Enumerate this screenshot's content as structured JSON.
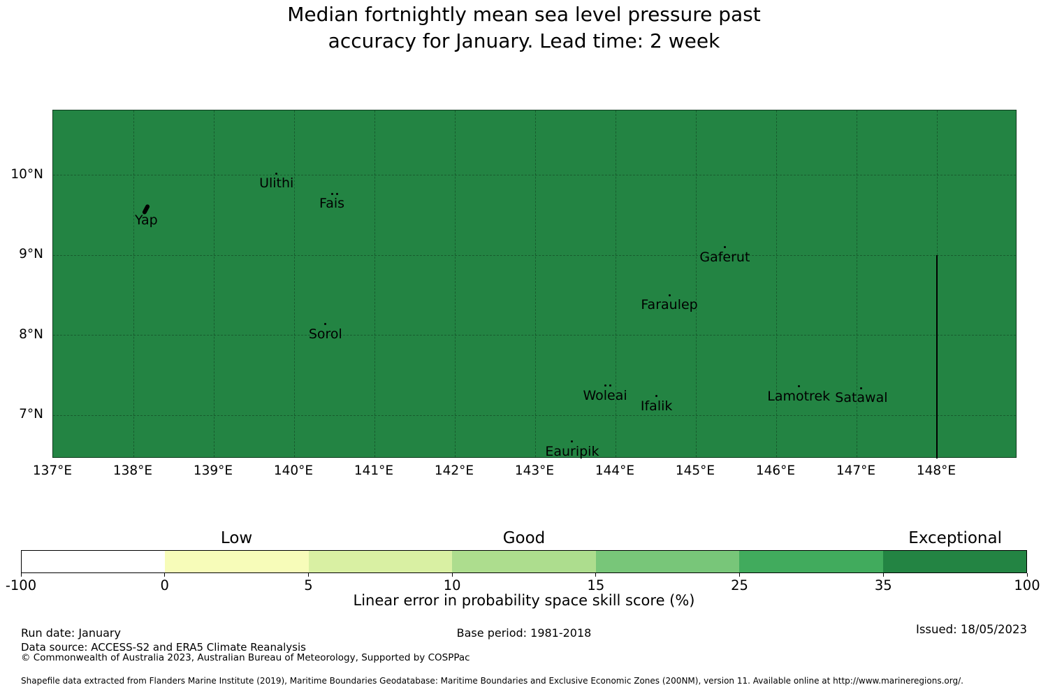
{
  "title": {
    "line1": "Median fortnightly mean sea level pressure past",
    "line2": "accuracy for January. Lead time: 2 week"
  },
  "map": {
    "fill_color": "#238443",
    "xlim": [
      137,
      149
    ],
    "ylim": [
      6.46,
      10.81
    ],
    "x_axis_ticks": [
      {
        "value": 137,
        "label": "137°E"
      },
      {
        "value": 138,
        "label": "138°E"
      },
      {
        "value": 139,
        "label": "139°E"
      },
      {
        "value": 140,
        "label": "140°E"
      },
      {
        "value": 141,
        "label": "141°E"
      },
      {
        "value": 142,
        "label": "142°E"
      },
      {
        "value": 143,
        "label": "143°E"
      },
      {
        "value": 144,
        "label": "144°E"
      },
      {
        "value": 145,
        "label": "145°E"
      },
      {
        "value": 146,
        "label": "146°E"
      },
      {
        "value": 147,
        "label": "147°E"
      },
      {
        "value": 148,
        "label": "148°E"
      }
    ],
    "y_axis_ticks": [
      {
        "value": 10,
        "label": "10°N"
      },
      {
        "value": 9,
        "label": "9°N"
      },
      {
        "value": 8,
        "label": "8°N"
      },
      {
        "value": 7,
        "label": "7°N"
      }
    ],
    "islands": [
      {
        "name": "Yap",
        "lon": 138.16,
        "lat": 9.56,
        "marker": "island",
        "dots": 1
      },
      {
        "name": "Ulithi",
        "lon": 139.78,
        "lat": 10.02,
        "marker": "dot",
        "dots": 1
      },
      {
        "name": "Fais",
        "lon": 140.47,
        "lat": 9.77,
        "marker": "dot",
        "dots": 2
      },
      {
        "name": "Sorol",
        "lon": 140.39,
        "lat": 8.14,
        "marker": "dot",
        "dots": 1
      },
      {
        "name": "Gaferut",
        "lon": 145.36,
        "lat": 9.1,
        "marker": "dot",
        "dots": 1
      },
      {
        "name": "Faraulep",
        "lon": 144.67,
        "lat": 8.5,
        "marker": "dot",
        "dots": 1
      },
      {
        "name": "Woleai",
        "lon": 143.87,
        "lat": 7.37,
        "marker": "dot",
        "dots": 2
      },
      {
        "name": "Ifalik",
        "lon": 144.51,
        "lat": 7.24,
        "marker": "dot",
        "dots": 1
      },
      {
        "name": "Lamotrek",
        "lon": 146.28,
        "lat": 7.36,
        "marker": "dot",
        "dots": 1
      },
      {
        "name": "Satawal",
        "lon": 147.06,
        "lat": 7.34,
        "marker": "dot",
        "dots": 1
      },
      {
        "name": "Eauripik",
        "lon": 143.46,
        "lat": 6.67,
        "marker": "dot",
        "dots": 1
      }
    ],
    "eez_boundary": {
      "lon": 148,
      "lat_from": 9.0,
      "lat_to": 6.46
    }
  },
  "colorbar": {
    "tick_labels": [
      "-100",
      "0",
      "5",
      "10",
      "15",
      "25",
      "35",
      "100"
    ],
    "segment_colors": [
      "#ffffff",
      "#f7fcb9",
      "#d9f0a3",
      "#addd8e",
      "#78c679",
      "#41ab5d",
      "#238443"
    ],
    "category_labels": [
      {
        "text": "Low",
        "segment_index": 1
      },
      {
        "text": "Good",
        "segment_index": 3
      },
      {
        "text": "Exceptional",
        "segment_index": 6
      }
    ],
    "axis_label": "Linear error in probability space skill score (%)"
  },
  "footer": {
    "run_date": "Run date: January",
    "base_period": "Base period: 1981-2018",
    "issued": "Issued: 18/05/2023",
    "data_source": "Data source: ACCESS-S2 and ERA5 Climate Reanalysis",
    "copyright": "© Commonwealth of Australia 2023, Australian Bureau of Meteorology, Supported by COSPPac",
    "shapefile_note": "Shapefile data extracted from Flanders Marine Institute (2019), Maritime Boundaries Geodatabase: Maritime Boundaries and Exclusive Economic Zones (200NM), version 11. Available online at http://www.marineregions.org/."
  },
  "chart_data": {
    "type": "heatmap",
    "title": "Median fortnightly mean sea level pressure past accuracy for January. Lead time: 2 week",
    "xlabel": "Linear error in probability space skill score (%)",
    "x_tick_labels": [
      "137°E",
      "138°E",
      "139°E",
      "140°E",
      "141°E",
      "142°E",
      "143°E",
      "144°E",
      "145°E",
      "146°E",
      "147°E",
      "148°E"
    ],
    "y_tick_labels": [
      "10°N",
      "9°N",
      "8°N",
      "7°N"
    ],
    "xlim": [
      137,
      149
    ],
    "ylim": [
      6.46,
      10.81
    ],
    "grid": true,
    "legend_position": "bottom colorbar",
    "colorbar_ticks": [
      -100,
      0,
      5,
      10,
      15,
      25,
      35,
      100
    ],
    "colorbar_categories": [
      "Low",
      "Good",
      "Exceptional"
    ],
    "region_skill_value_class": "35 to 100 (Exceptional)",
    "labeled_points": [
      {
        "name": "Yap",
        "lon": 138.16,
        "lat": 9.56
      },
      {
        "name": "Ulithi",
        "lon": 139.78,
        "lat": 10.02
      },
      {
        "name": "Fais",
        "lon": 140.47,
        "lat": 9.77
      },
      {
        "name": "Sorol",
        "lon": 140.39,
        "lat": 8.14
      },
      {
        "name": "Gaferut",
        "lon": 145.36,
        "lat": 9.1
      },
      {
        "name": "Faraulep",
        "lon": 144.67,
        "lat": 8.5
      },
      {
        "name": "Woleai",
        "lon": 143.87,
        "lat": 7.37
      },
      {
        "name": "Ifalik",
        "lon": 144.51,
        "lat": 7.24
      },
      {
        "name": "Lamotrek",
        "lon": 146.28,
        "lat": 7.36
      },
      {
        "name": "Satawal",
        "lon": 147.06,
        "lat": 7.34
      },
      {
        "name": "Eauripik",
        "lon": 143.46,
        "lat": 6.67
      }
    ]
  }
}
